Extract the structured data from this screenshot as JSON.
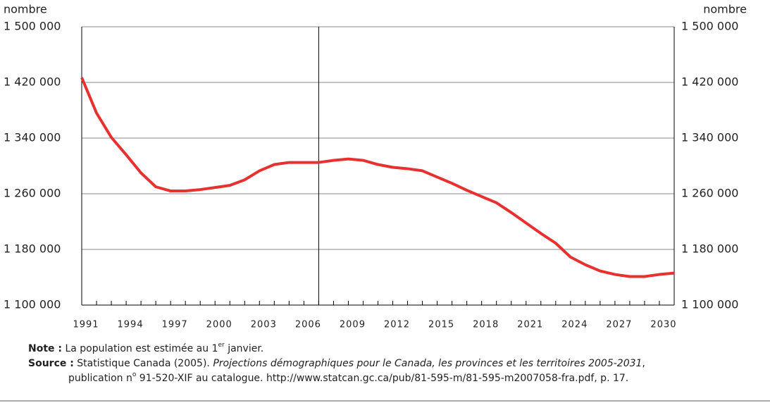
{
  "chart_data": {
    "type": "line",
    "y_axis_label": "nombre",
    "x": [
      1991,
      1992,
      1993,
      1994,
      1995,
      1996,
      1997,
      1998,
      1999,
      2000,
      2001,
      2002,
      2003,
      2004,
      2005,
      2006,
      2007,
      2008,
      2009,
      2010,
      2011,
      2012,
      2013,
      2014,
      2015,
      2016,
      2017,
      2018,
      2019,
      2020,
      2021,
      2022,
      2023,
      2024,
      2025,
      2026,
      2027,
      2028,
      2029,
      2030,
      2031
    ],
    "series": [
      {
        "name": "population",
        "color": "#e63130",
        "values": [
          1427000,
          1376000,
          1341000,
          1316000,
          1290000,
          1270000,
          1264000,
          1264000,
          1266000,
          1269000,
          1272000,
          1280000,
          1293000,
          1302000,
          1305000,
          1305000,
          1305000,
          1308000,
          1310000,
          1308000,
          1302000,
          1298000,
          1296000,
          1293000,
          1284000,
          1275000,
          1265000,
          1256000,
          1247000,
          1233000,
          1218000,
          1203000,
          1189000,
          1169000,
          1158000,
          1149000,
          1144000,
          1141000,
          1141000,
          1144000,
          1146000
        ]
      }
    ],
    "xlim": [
      1991,
      2031
    ],
    "xticks": [
      1991,
      1994,
      1997,
      2000,
      2003,
      2006,
      2009,
      2012,
      2015,
      2018,
      2021,
      2024,
      2027,
      2030
    ],
    "ylim": [
      1100000,
      1500000
    ],
    "yticks": [
      {
        "value": 1100000,
        "label": "1 100 000"
      },
      {
        "value": 1180000,
        "label": "1 180 000"
      },
      {
        "value": 1260000,
        "label": "1 260 000"
      },
      {
        "value": 1340000,
        "label": "1 340 000"
      },
      {
        "value": 1420000,
        "label": "1 420 000"
      },
      {
        "value": 1500000,
        "label": "1 500 000"
      }
    ],
    "grid": true,
    "divider_x": 2007
  },
  "notes": {
    "note_label": "Note :",
    "note_text": "La population est estimée au 1",
    "note_sup": "er",
    "note_text_end": " janvier.",
    "source_label": "Source :",
    "source_text": "Statistique Canada (2005). ",
    "source_title": "Projections démographiques pour le Canada, les provinces et les territoires 2005-2031",
    "source_text_2": ",",
    "source_line2_a": "publication n",
    "source_line2_sup": "o",
    "source_line2_b": " 91-520-XIF au catalogue. http://www.statcan.gc.ca/pub/81-595-m/81-595-m2007058-fra.pdf, p. 17."
  }
}
